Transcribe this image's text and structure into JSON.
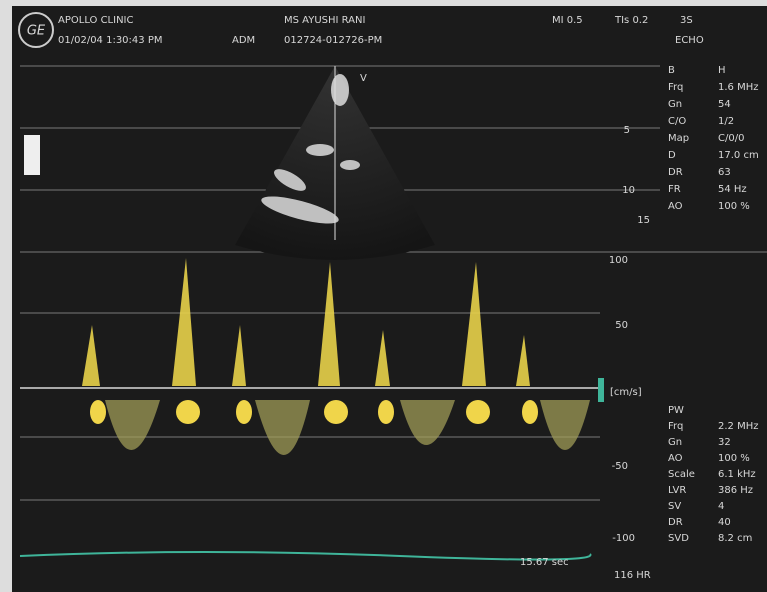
{
  "header": {
    "clinic": "APOLLO CLINIC",
    "datetime": "01/02/04 1:30:43 PM",
    "operator": "ADM",
    "patient": "MS AYUSHI RANI",
    "id": "012724-012726-PM",
    "mi": "MI 0.5",
    "tis": "TIs 0.2",
    "probe": "3S",
    "preset": "ECHO"
  },
  "bmode": {
    "marker": "V",
    "depth_ticks": [
      "5",
      "10",
      "15"
    ],
    "params": [
      [
        "B",
        "H"
      ],
      [
        "Frq",
        "1.6 MHz"
      ],
      [
        "Gn",
        "54"
      ],
      [
        "C/O",
        "1/2"
      ],
      [
        "Map",
        "C/0/0"
      ],
      [
        "D",
        "17.0 cm"
      ],
      [
        "DR",
        "63"
      ],
      [
        "FR",
        "54 Hz"
      ],
      [
        "AO",
        "100 %"
      ]
    ]
  },
  "doppler": {
    "scale_ticks": [
      "100",
      "50",
      "[cm/s]",
      "-50",
      "-100"
    ],
    "sweep": "15.67 sec",
    "hr": "116 HR",
    "params": [
      [
        "PW",
        ""
      ],
      [
        "Frq",
        "2.2 MHz"
      ],
      [
        "Gn",
        "32"
      ],
      [
        "AO",
        "100 %"
      ],
      [
        "Scale",
        "6.1 kHz"
      ],
      [
        "LVR",
        "386 Hz"
      ],
      [
        "SV",
        "4"
      ],
      [
        "DR",
        "40"
      ],
      [
        "SVD",
        "8.2 cm"
      ]
    ]
  }
}
